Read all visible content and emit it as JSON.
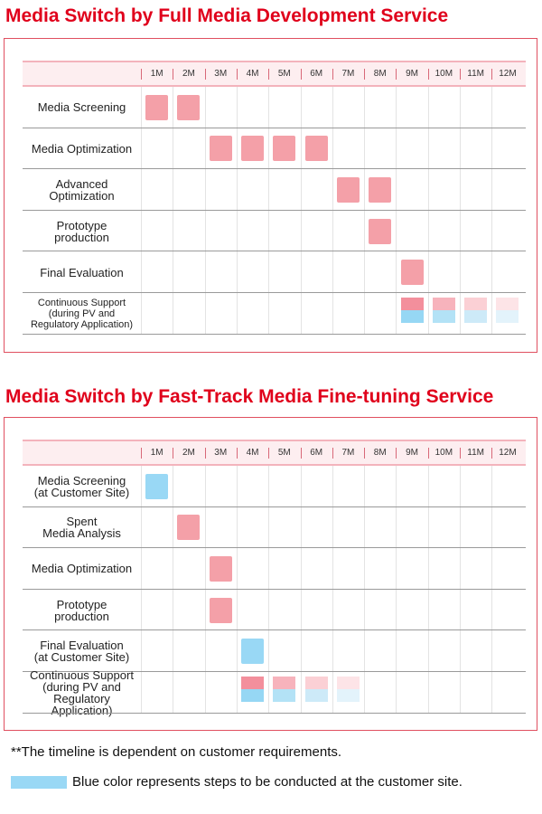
{
  "sections": [
    {
      "title": "Media Switch by Full Media Development Service",
      "months": [
        "1M",
        "2M",
        "3M",
        "4M",
        "5M",
        "6M",
        "7M",
        "8M",
        "9M",
        "10M",
        "11M",
        "12M"
      ],
      "rows": [
        {
          "label": [
            "Media Screening"
          ],
          "bars": [
            {
              "month": 1,
              "color": "#f4a0a8"
            },
            {
              "month": 2,
              "color": "#f4a0a8"
            }
          ]
        },
        {
          "label": [
            "Media Optimization"
          ],
          "bars": [
            {
              "month": 3,
              "color": "#f4a0a8"
            },
            {
              "month": 4,
              "color": "#f4a0a8"
            },
            {
              "month": 5,
              "color": "#f4a0a8"
            },
            {
              "month": 6,
              "color": "#f4a0a8"
            }
          ]
        },
        {
          "label": [
            "Advanced",
            "Optimization"
          ],
          "bars": [
            {
              "month": 7,
              "color": "#f4a0a8"
            },
            {
              "month": 8,
              "color": "#f4a0a8"
            }
          ]
        },
        {
          "label": [
            "Prototype",
            "production"
          ],
          "bars": [
            {
              "month": 8,
              "color": "#f4a0a8"
            }
          ]
        },
        {
          "label": [
            "Final Evaluation"
          ],
          "bars": [
            {
              "month": 9,
              "color": "#f4a0a8"
            }
          ]
        },
        {
          "label": [
            "Continuous Support",
            "(during PV and",
            "Regulatory Application)"
          ],
          "small": true,
          "bars": [
            {
              "month": 9,
              "top": "#f38f9c",
              "bottom": "#96d7f4"
            },
            {
              "month": 10,
              "top": "#f7b3bc",
              "bottom": "#b3e2f6"
            },
            {
              "month": 11,
              "top": "#fbd0d5",
              "bottom": "#cdeaf8"
            },
            {
              "month": 12,
              "top": "#fde4e7",
              "bottom": "#e3f3fb"
            }
          ]
        }
      ]
    },
    {
      "title": "Media Switch by Fast-Track Media Fine-tuning Service",
      "months": [
        "1M",
        "2M",
        "3M",
        "4M",
        "5M",
        "6M",
        "7M",
        "8M",
        "9M",
        "10M",
        "11M",
        "12M"
      ],
      "rows": [
        {
          "label": [
            "Media Screening",
            "(at Customer Site)"
          ],
          "bars": [
            {
              "month": 1,
              "color": "#99d8f5"
            }
          ]
        },
        {
          "label": [
            "Spent",
            "Media Analysis"
          ],
          "bars": [
            {
              "month": 2,
              "color": "#f4a0a8"
            }
          ]
        },
        {
          "label": [
            "Media Optimization"
          ],
          "bars": [
            {
              "month": 3,
              "color": "#f4a0a8"
            }
          ]
        },
        {
          "label": [
            "Prototype",
            "production"
          ],
          "bars": [
            {
              "month": 3,
              "color": "#f4a0a8"
            }
          ]
        },
        {
          "label": [
            "Final Evaluation",
            "(at Customer Site)"
          ],
          "bars": [
            {
              "month": 4,
              "color": "#99d8f5"
            }
          ]
        },
        {
          "label": [
            "Continuous Support",
            "(during PV and",
            "Regulatory Application)"
          ],
          "bars": [
            {
              "month": 4,
              "top": "#f38f9c",
              "bottom": "#96d7f4"
            },
            {
              "month": 5,
              "top": "#f7b3bc",
              "bottom": "#b3e2f6"
            },
            {
              "month": 6,
              "top": "#fbd0d5",
              "bottom": "#cdeaf8"
            },
            {
              "month": 7,
              "top": "#fde4e7",
              "bottom": "#e3f3fb"
            }
          ]
        }
      ]
    }
  ],
  "notes": {
    "timeline": "**The timeline is dependent on customer requirements.",
    "legend": "Blue color represents steps to be conducted at the customer site."
  },
  "colors": {
    "accent": "#e0001b",
    "pink": "#f4a0a8",
    "blue": "#99d8f5"
  }
}
